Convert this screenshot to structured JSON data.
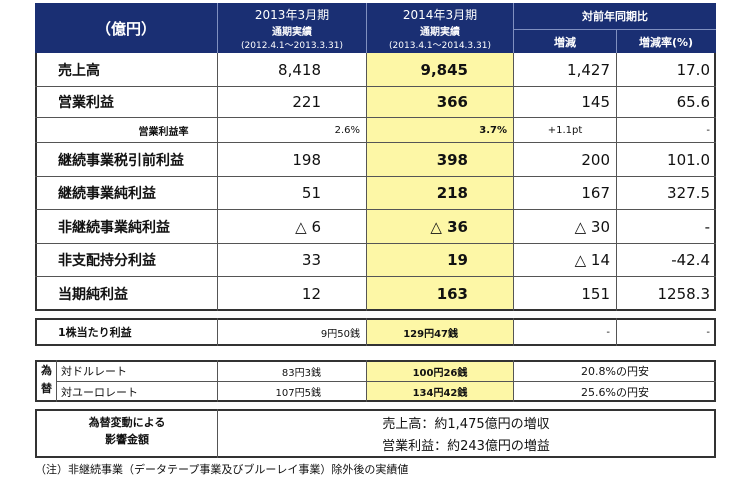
{
  "header": {
    "unit": "（億円）",
    "col_2013": {
      "title": "2013年3月期",
      "sub": "通期実績",
      "period": "(2012.4.1〜2013.3.31)"
    },
    "col_2014": {
      "title": "2014年3月期",
      "sub": "通期実績",
      "period": "(2013.4.1〜2014.3.31)"
    },
    "yoy": {
      "title": "対前年同期比",
      "change": "増減",
      "rate": "増減率(%)"
    }
  },
  "rows": [
    {
      "label": "売上高",
      "v2013": "8,418",
      "v2014": "9,845",
      "change": "1,427",
      "rate": "17.0"
    },
    {
      "label": "営業利益",
      "v2013": "221",
      "v2014": "366",
      "change": "145",
      "rate": "65.6"
    },
    {
      "label": "営業利益率",
      "v2013": "2.6%",
      "v2014": "3.7%",
      "change": "+1.1pt",
      "rate": "-"
    },
    {
      "label": "継続事業税引前利益",
      "v2013": "198",
      "v2014": "398",
      "change": "200",
      "rate": "101.0"
    },
    {
      "label": "継続事業純利益",
      "v2013": "51",
      "v2014": "218",
      "change": "167",
      "rate": "327.5"
    },
    {
      "label": "非継続事業純利益",
      "v2013": "△ 6",
      "v2014": "△ 36",
      "change": "△ 30",
      "rate": "-"
    },
    {
      "label": "非支配持分利益",
      "v2013": "33",
      "v2014": "19",
      "change": "△ 14",
      "rate": "-42.4"
    },
    {
      "label": "当期純利益",
      "v2013": "12",
      "v2014": "163",
      "change": "151",
      "rate": "1258.3"
    }
  ],
  "eps": {
    "label": "1株当たり利益",
    "v2013": "9円50銭",
    "v2014": "129円47銭",
    "change": "-",
    "rate": "-"
  },
  "fx": {
    "side_label_1": "為",
    "side_label_2": "替",
    "usd": {
      "label": "対ドルレート",
      "v2013": "83円3銭",
      "v2014": "100円26銭",
      "yoy": "20.8%の円安"
    },
    "eur": {
      "label": "対ユーロレート",
      "v2013": "107円5銭",
      "v2014": "134円42銭",
      "yoy": "25.6%の円安"
    }
  },
  "impact": {
    "label_1": "為替変動による",
    "label_2": "影響金額",
    "sales": "売上高：約1,475億円の増収",
    "op": "営業利益：約243億円の増益"
  },
  "note": "（注）非継続事業（データテープ事業及びブルーレイ事業）除外後の実績値"
}
